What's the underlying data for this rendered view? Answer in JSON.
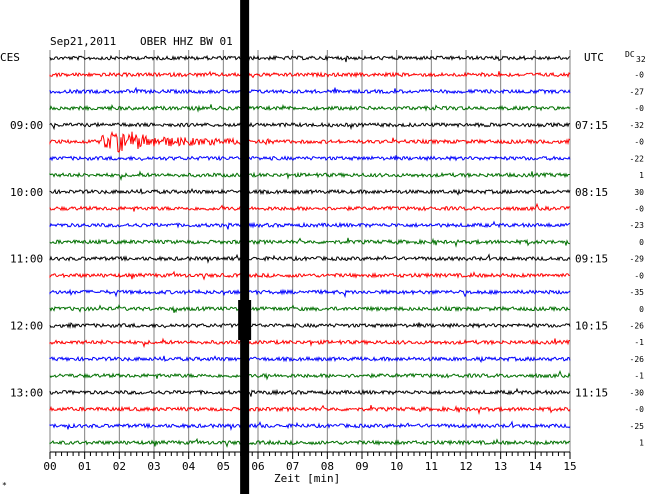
{
  "header": {
    "date": "Sep21,2011",
    "station": "OBER HHZ BW 01",
    "left_zone": "CES",
    "right_zone": "UTC",
    "dc_label": "DC",
    "dc_sub": "32"
  },
  "xaxis": {
    "label": "Zeit [min]",
    "ticks": [
      "00",
      "01",
      "02",
      "03",
      "04",
      "05",
      "06",
      "07",
      "08",
      "09",
      "10",
      "11",
      "12",
      "13",
      "14",
      "15"
    ]
  },
  "corner_mark": "*",
  "colors": {
    "trace_cycle": [
      "#000000",
      "#ff0000",
      "#0000ff",
      "#007000"
    ],
    "grid": "#808080"
  },
  "chart_data": {
    "type": "line",
    "title": "Sep21,2011   OBER HHZ BW 01",
    "xlabel": "Zeit [min]",
    "xlim": [
      0,
      15
    ],
    "trace_count": 24,
    "minutes_per_trace": 15,
    "left_hour_labels": [
      {
        "trace": 4,
        "text": "09:00"
      },
      {
        "trace": 8,
        "text": "10:00"
      },
      {
        "trace": 12,
        "text": "11:00"
      },
      {
        "trace": 16,
        "text": "12:00"
      },
      {
        "trace": 20,
        "text": "13:00"
      }
    ],
    "right_time_labels": [
      {
        "trace": 4,
        "text": "07:15"
      },
      {
        "trace": 8,
        "text": "08:15"
      },
      {
        "trace": 12,
        "text": "09:15"
      },
      {
        "trace": 16,
        "text": "10:15"
      },
      {
        "trace": 20,
        "text": "11:15"
      }
    ],
    "dc_offsets": [
      "-0",
      "-27",
      "-0",
      "-32",
      "-0",
      "-22",
      "1",
      "30",
      "-0",
      "-23",
      "0",
      "-29",
      "-0",
      "-35",
      "0",
      "-26",
      "-1",
      "-26",
      "-1",
      "-30",
      "-0",
      "-25",
      "1"
    ],
    "event": {
      "trace": 5,
      "start_min": 1.5,
      "end_min": 6.5,
      "peak_min": 2.0
    },
    "saturation_min": 5.6
  }
}
